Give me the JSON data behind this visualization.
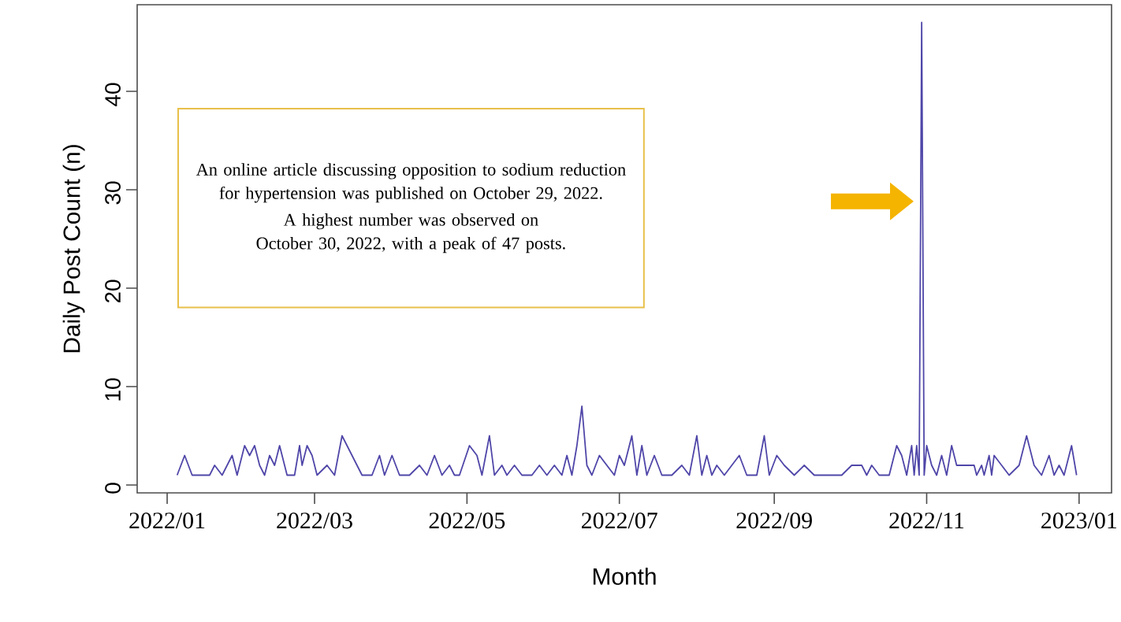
{
  "chart_data": {
    "type": "line",
    "xlabel": "Month",
    "ylabel": "Daily Post Count (n)",
    "xlim": [
      "2021-12-20",
      "2023-01-14"
    ],
    "ylim": [
      -0.8,
      48.8
    ],
    "xticks": [
      {
        "value": "2022-01-01",
        "label": "2022/01"
      },
      {
        "value": "2022-03-01",
        "label": "2022/03"
      },
      {
        "value": "2022-05-01",
        "label": "2022/05"
      },
      {
        "value": "2022-07-01",
        "label": "2022/07"
      },
      {
        "value": "2022-09-01",
        "label": "2022/09"
      },
      {
        "value": "2022-11-01",
        "label": "2022/11"
      },
      {
        "value": "2023-01-01",
        "label": "2023/01"
      }
    ],
    "yticks": [
      0,
      10,
      20,
      30,
      40
    ],
    "annotations": [
      "An online article discussing opposition to sodium reduction for hypertension was published on October 29, 2022.",
      "A highest number was observed on October 30, 2022, with a peak of 47 posts."
    ],
    "x": [
      "2022-01-05",
      "2022-01-08",
      "2022-01-11",
      "2022-01-18",
      "2022-01-20",
      "2022-01-23",
      "2022-01-27",
      "2022-01-29",
      "2022-02-01",
      "2022-02-03",
      "2022-02-05",
      "2022-02-07",
      "2022-02-09",
      "2022-02-11",
      "2022-02-13",
      "2022-02-15",
      "2022-02-18",
      "2022-02-21",
      "2022-02-23",
      "2022-02-24",
      "2022-02-26",
      "2022-02-28",
      "2022-03-02",
      "2022-03-06",
      "2022-03-09",
      "2022-03-12",
      "2022-03-16",
      "2022-03-20",
      "2022-03-24",
      "2022-03-27",
      "2022-03-29",
      "2022-04-01",
      "2022-04-04",
      "2022-04-08",
      "2022-04-12",
      "2022-04-15",
      "2022-04-18",
      "2022-04-21",
      "2022-04-24",
      "2022-04-26",
      "2022-04-28",
      "2022-05-02",
      "2022-05-05",
      "2022-05-07",
      "2022-05-10",
      "2022-05-12",
      "2022-05-15",
      "2022-05-17",
      "2022-05-20",
      "2022-05-23",
      "2022-05-27",
      "2022-05-30",
      "2022-06-02",
      "2022-06-05",
      "2022-06-08",
      "2022-06-10",
      "2022-06-12",
      "2022-06-14",
      "2022-06-16",
      "2022-06-18",
      "2022-06-20",
      "2022-06-23",
      "2022-06-26",
      "2022-06-29",
      "2022-07-01",
      "2022-07-03",
      "2022-07-06",
      "2022-07-08",
      "2022-07-10",
      "2022-07-12",
      "2022-07-15",
      "2022-07-18",
      "2022-07-22",
      "2022-07-26",
      "2022-07-29",
      "2022-08-01",
      "2022-08-03",
      "2022-08-05",
      "2022-08-07",
      "2022-08-09",
      "2022-08-12",
      "2022-08-15",
      "2022-08-18",
      "2022-08-21",
      "2022-08-25",
      "2022-08-28",
      "2022-08-30",
      "2022-09-02",
      "2022-09-05",
      "2022-09-09",
      "2022-09-13",
      "2022-09-17",
      "2022-09-22",
      "2022-09-28",
      "2022-10-02",
      "2022-10-06",
      "2022-10-08",
      "2022-10-10",
      "2022-10-13",
      "2022-10-17",
      "2022-10-20",
      "2022-10-22",
      "2022-10-24",
      "2022-10-26",
      "2022-10-27",
      "2022-10-28",
      "2022-10-29",
      "2022-10-30",
      "2022-10-31",
      "2022-11-01",
      "2022-11-03",
      "2022-11-05",
      "2022-11-07",
      "2022-11-09",
      "2022-11-11",
      "2022-11-13",
      "2022-11-20",
      "2022-11-21",
      "2022-11-23",
      "2022-11-24",
      "2022-11-26",
      "2022-11-27",
      "2022-11-28",
      "2022-12-01",
      "2022-12-04",
      "2022-12-08",
      "2022-12-11",
      "2022-12-14",
      "2022-12-17",
      "2022-12-20",
      "2022-12-22",
      "2022-12-24",
      "2022-12-26",
      "2022-12-29",
      "2022-12-31"
    ],
    "series": [
      {
        "color": "#4f46a8",
        "values": [
          1,
          3,
          1,
          1,
          2,
          1,
          3,
          1,
          4,
          3,
          4,
          2,
          1,
          3,
          2,
          4,
          1,
          1,
          4,
          2,
          4,
          3,
          1,
          2,
          1,
          5,
          3,
          1,
          1,
          3,
          1,
          3,
          1,
          1,
          2,
          1,
          3,
          1,
          2,
          1,
          1,
          4,
          3,
          1,
          5,
          1,
          2,
          1,
          2,
          1,
          1,
          2,
          1,
          2,
          1,
          3,
          1,
          4,
          8,
          2,
          1,
          3,
          2,
          1,
          3,
          2,
          5,
          1,
          4,
          1,
          3,
          1,
          1,
          2,
          1,
          5,
          1,
          3,
          1,
          2,
          1,
          2,
          3,
          1,
          1,
          5,
          1,
          3,
          2,
          1,
          2,
          1,
          1,
          1,
          2,
          2,
          1,
          2,
          1,
          1,
          4,
          3,
          1,
          4,
          1,
          4,
          1,
          47,
          1,
          4,
          2,
          1,
          3,
          1,
          4,
          2,
          2,
          1,
          2,
          1,
          3,
          1,
          3,
          2,
          1,
          2,
          5,
          2,
          1,
          3,
          1,
          2,
          1,
          4,
          1
        ]
      }
    ]
  }
}
